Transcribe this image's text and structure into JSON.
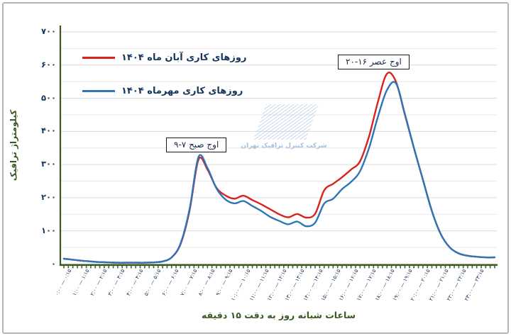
{
  "legend": {
    "items": [
      {
        "label": "روزهای کاری آبان ماه  ۱۴۰۴",
        "color": "#d8231f",
        "series_id": "aban"
      },
      {
        "label": "روزهای کاری مهرماه ۱۴۰۴",
        "color": "#2e75b6",
        "series_id": "mehr"
      }
    ]
  },
  "annotations": {
    "morning_peak": "اوج صبح ۷-۹",
    "evening_peak": "اوج عصر ۱۶-۲۰"
  },
  "watermark": {
    "text": "شرکت کنترل ترافیک تهران"
  },
  "colors": {
    "axis_green": "#3a5a22",
    "tick_text_navy": "#17365d",
    "grid_minor": "#e7e7e7",
    "grid_major": "#d9d9d9",
    "series_red": "#d8231f",
    "series_blue": "#2e75b6"
  },
  "chart_data": {
    "type": "line",
    "title": "",
    "xlabel": "ساعات شبانه روز به دقت ۱۵ دقیقه",
    "ylabel": "کیلومتراژ ترافیک",
    "ylim": [
      0,
      700
    ],
    "y_gridline_step": 50,
    "ytick_step": 100,
    "ytick_labels_top_to_bottom": [
      "۷۰۰",
      "۶۰۰",
      "۵۰۰",
      "۴۰۰",
      "۳۰۰",
      "۲۰۰",
      "۱۰۰",
      "۰"
    ],
    "x_start_hour": 0,
    "x_end_hour": 24,
    "x_step_minutes": 30,
    "x_minor_tick_minutes": 15,
    "xtick_labels": [
      "۰:۰۰ — ۰:۱۵",
      "۱:۰۰ — ۱:۱۵",
      "۲:۰۰ — ۲:۱۵",
      "۳:۰۰ — ۳:۱۵",
      "۴:۰۰ — ۴:۱۵",
      "۵:۰۰ — ۵:۱۵",
      "۶:۰۰ — ۶:۱۵",
      "۷:۰۰ — ۷:۱۵",
      "۸:۰۰ — ۸:۱۵",
      "۹:۰۰ — ۹:۱۵",
      "۱۰:۰۰ — ۱۰:۱۵",
      "۱۱:۰۰ — ۱۱:۱۵",
      "۱۲:۰۰ — ۱۲:۱۵",
      "۱۳:۰۰ — ۱۳:۱۵",
      "۱۴:۰۰ — ۱۴:۱۵",
      "۱۵:۰۰ — ۱۵:۱۵",
      "۱۶:۰۰ — ۱۶:۱۵",
      "۱۷:۰۰ — ۱۷:۱۵",
      "۱۸:۰۰ — ۱۸:۱۵",
      "۱۹:۰۰ — ۱۹:۱۵",
      "۲۰:۰۰ — ۲۰:۱۵",
      "۲۱:۰۰ — ۲۱:۱۵",
      "۲۲:۰۰ — ۲۲:۱۵",
      "۲۳:۰۰ — ۲۳:۱۵"
    ],
    "grid": "horizontal only",
    "legend_position": "top-left",
    "series": [
      {
        "name": "روزهای کاری آبان ماه ۱۴۰۴",
        "color": "#d8231f",
        "values": [
          16,
          13,
          10,
          8,
          6,
          5,
          4,
          4,
          4,
          4,
          5,
          8,
          20,
          60,
          160,
          315,
          285,
          230,
          207,
          197,
          206,
          193,
          180,
          165,
          150,
          141,
          151,
          140,
          152,
          222,
          242,
          262,
          285,
          310,
          385,
          490,
          574,
          550,
          450,
          350,
          255,
          160,
          90,
          50,
          32,
          25,
          22,
          20,
          20
        ]
      },
      {
        "name": "روزهای کاری مهرماه ۱۴۰۴",
        "color": "#2e75b6",
        "values": [
          16,
          13,
          10,
          8,
          6,
          5,
          4,
          4,
          4,
          4,
          5,
          8,
          20,
          62,
          165,
          323,
          290,
          228,
          195,
          183,
          190,
          175,
          160,
          142,
          130,
          120,
          128,
          114,
          125,
          182,
          197,
          226,
          248,
          280,
          350,
          445,
          525,
          545,
          452,
          350,
          255,
          160,
          90,
          50,
          32,
          25,
          22,
          20,
          20
        ]
      }
    ],
    "peak_annotations": [
      {
        "text": "اوج صبح ۷-۹",
        "peak_hour": 7.5,
        "peak_value": 315
      },
      {
        "text": "اوج عصر ۱۶-۲۰",
        "peak_hour": 18,
        "peak_value": 574
      }
    ]
  }
}
